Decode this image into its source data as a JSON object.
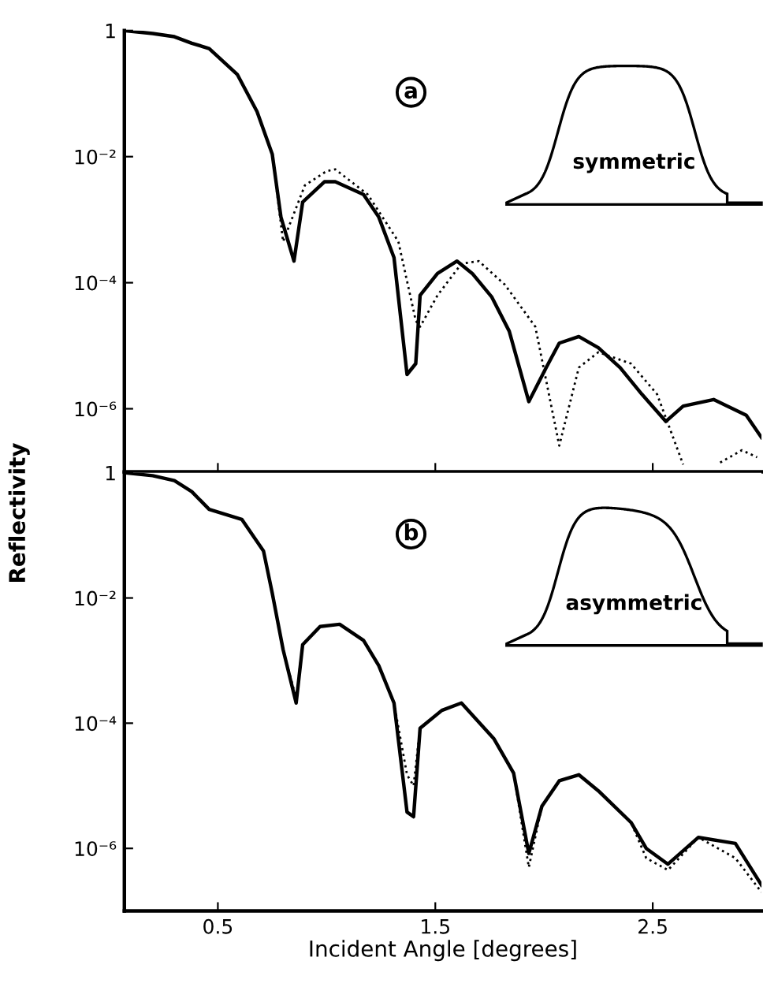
{
  "chart_data": [
    {
      "type": "line",
      "ylabel": "Reflectivity",
      "log": "y",
      "xlim": [
        0.07,
        3.0
      ],
      "ylim": [
        1e-07,
        1
      ],
      "yticks": [
        {
          "value": 1,
          "label": "1"
        },
        {
          "value": 0.01,
          "label": "10⁻²"
        },
        {
          "value": 0.0001,
          "label": "10⁻⁴"
        },
        {
          "value": 1e-06,
          "label": "10⁻⁶"
        }
      ],
      "xticks": [
        0.5,
        1.5,
        2.5
      ],
      "tick_labels": "y",
      "grid": false,
      "legend": false,
      "annotations": [
        "a",
        "symmetric"
      ],
      "series": [
        {
          "color": "#000000",
          "line_style": "solid",
          "x": [
            0.07,
            0.2,
            0.3,
            0.38,
            0.46,
            0.59,
            0.68,
            0.75,
            0.79,
            0.85,
            0.89,
            0.99,
            1.04,
            1.17,
            1.24,
            1.31,
            1.37,
            1.41,
            1.43,
            1.51,
            1.6,
            1.67,
            1.76,
            1.84,
            1.93,
            2.01,
            2.07,
            2.16,
            2.25,
            2.35,
            2.45,
            2.56,
            2.64,
            2.78,
            2.93,
            3.0
          ],
          "values": [
            1,
            0.9,
            0.8,
            0.63,
            0.52,
            0.2,
            0.052,
            0.011,
            0.0011,
            0.00022,
            0.0019,
            0.004,
            0.004,
            0.0025,
            0.0011,
            0.00025,
            3.5e-06,
            5.2e-06,
            6.3e-05,
            0.00014,
            0.00022,
            0.00014,
            5.9e-05,
            1.7e-05,
            1.3e-06,
            4.5e-06,
            1.1e-05,
            1.4e-05,
            9.3e-06,
            4.5e-06,
            1.7e-06,
            6.3e-07,
            1.1e-06,
            1.4e-06,
            7.9e-07,
            3.5e-07
          ]
        },
        {
          "color": "#000000",
          "line_style": "dotted",
          "x": [
            0.07,
            0.2,
            0.3,
            0.38,
            0.46,
            0.59,
            0.68,
            0.75,
            0.8,
            0.9,
            1.0,
            1.04,
            1.19,
            1.33,
            1.41,
            1.43,
            1.51,
            1.62,
            1.7,
            1.82,
            1.96,
            2.07,
            2.16,
            2.25,
            2.4,
            2.52,
            2.64,
            2.72,
            2.81,
            2.91,
            2.98
          ],
          "values": [
            1,
            0.9,
            0.8,
            0.63,
            0.52,
            0.2,
            0.052,
            0.011,
            0.00045,
            0.0035,
            0.0059,
            0.0063,
            0.0025,
            0.00045,
            2.5e-05,
            2e-05,
            6.3e-05,
            0.0002,
            0.00022,
            9.3e-05,
            2e-05,
            2.6e-07,
            4.5e-06,
            7.9e-06,
            5.2e-06,
            1.7e-06,
            1.3e-07,
            null,
            1.4e-07,
            2.2e-07,
            1.7e-07
          ]
        }
      ]
    },
    {
      "type": "line",
      "xlabel": "Incident Angle [degrees]",
      "log": "y",
      "xlim": [
        0.07,
        3.0
      ],
      "ylim": [
        1e-07,
        1
      ],
      "yticks": [
        {
          "value": 1,
          "label": "1"
        },
        {
          "value": 0.01,
          "label": "10⁻²"
        },
        {
          "value": 0.0001,
          "label": "10⁻⁴"
        },
        {
          "value": 1e-06,
          "label": "10⁻⁶"
        }
      ],
      "xticks": [
        0.5,
        1.5,
        2.5
      ],
      "grid": false,
      "legend": false,
      "annotations": [
        "b",
        "asymmetric"
      ],
      "series": [
        {
          "color": "#000000",
          "line_style": "solid",
          "x": [
            0.07,
            0.2,
            0.3,
            0.38,
            0.46,
            0.61,
            0.71,
            0.75,
            0.8,
            0.86,
            0.89,
            0.97,
            1.06,
            1.17,
            1.24,
            1.31,
            1.37,
            1.4,
            1.43,
            1.53,
            1.62,
            1.77,
            1.86,
            1.93,
            1.99,
            2.07,
            2.16,
            2.25,
            2.4,
            2.47,
            2.57,
            2.71,
            2.88,
            3.0
          ],
          "values": [
            1,
            0.9,
            0.75,
            0.5,
            0.26,
            0.18,
            0.056,
            0.012,
            0.0015,
            0.00021,
            0.0018,
            0.0035,
            0.0038,
            0.0021,
            0.00083,
            0.00021,
            3.8e-06,
            3.2e-06,
            8.3e-05,
            0.00016,
            0.00021,
            5.6e-05,
            1.6e-05,
            8.3e-07,
            4.7e-06,
            1.2e-05,
            1.5e-05,
            8.3e-06,
            2.6e-06,
            1e-06,
            5.6e-07,
            1.5e-06,
            1.2e-06,
            2.6e-07
          ]
        },
        {
          "color": "#000000",
          "line_style": "dotted",
          "x": [
            0.07,
            0.2,
            0.3,
            0.38,
            0.46,
            0.61,
            0.71,
            0.75,
            0.8,
            0.86,
            0.89,
            0.97,
            1.06,
            1.17,
            1.24,
            1.31,
            1.37,
            1.4,
            1.43,
            1.53,
            1.62,
            1.77,
            1.86,
            1.93,
            1.99,
            2.07,
            2.16,
            2.25,
            2.4,
            2.47,
            2.57,
            2.71,
            2.88,
            3.0
          ],
          "values": [
            1,
            0.9,
            0.75,
            0.5,
            0.26,
            0.18,
            0.056,
            0.012,
            0.0015,
            0.00025,
            0.0018,
            0.0035,
            0.0038,
            0.0021,
            0.00083,
            0.00021,
            1.5e-05,
            1e-05,
            8.3e-05,
            0.00016,
            0.00021,
            5.6e-05,
            1.6e-05,
            5e-07,
            4.7e-06,
            1.2e-05,
            1.5e-05,
            8.3e-06,
            2.6e-06,
            7e-07,
            4.5e-07,
            1.5e-06,
            7e-07,
            2e-07
          ]
        }
      ]
    }
  ]
}
